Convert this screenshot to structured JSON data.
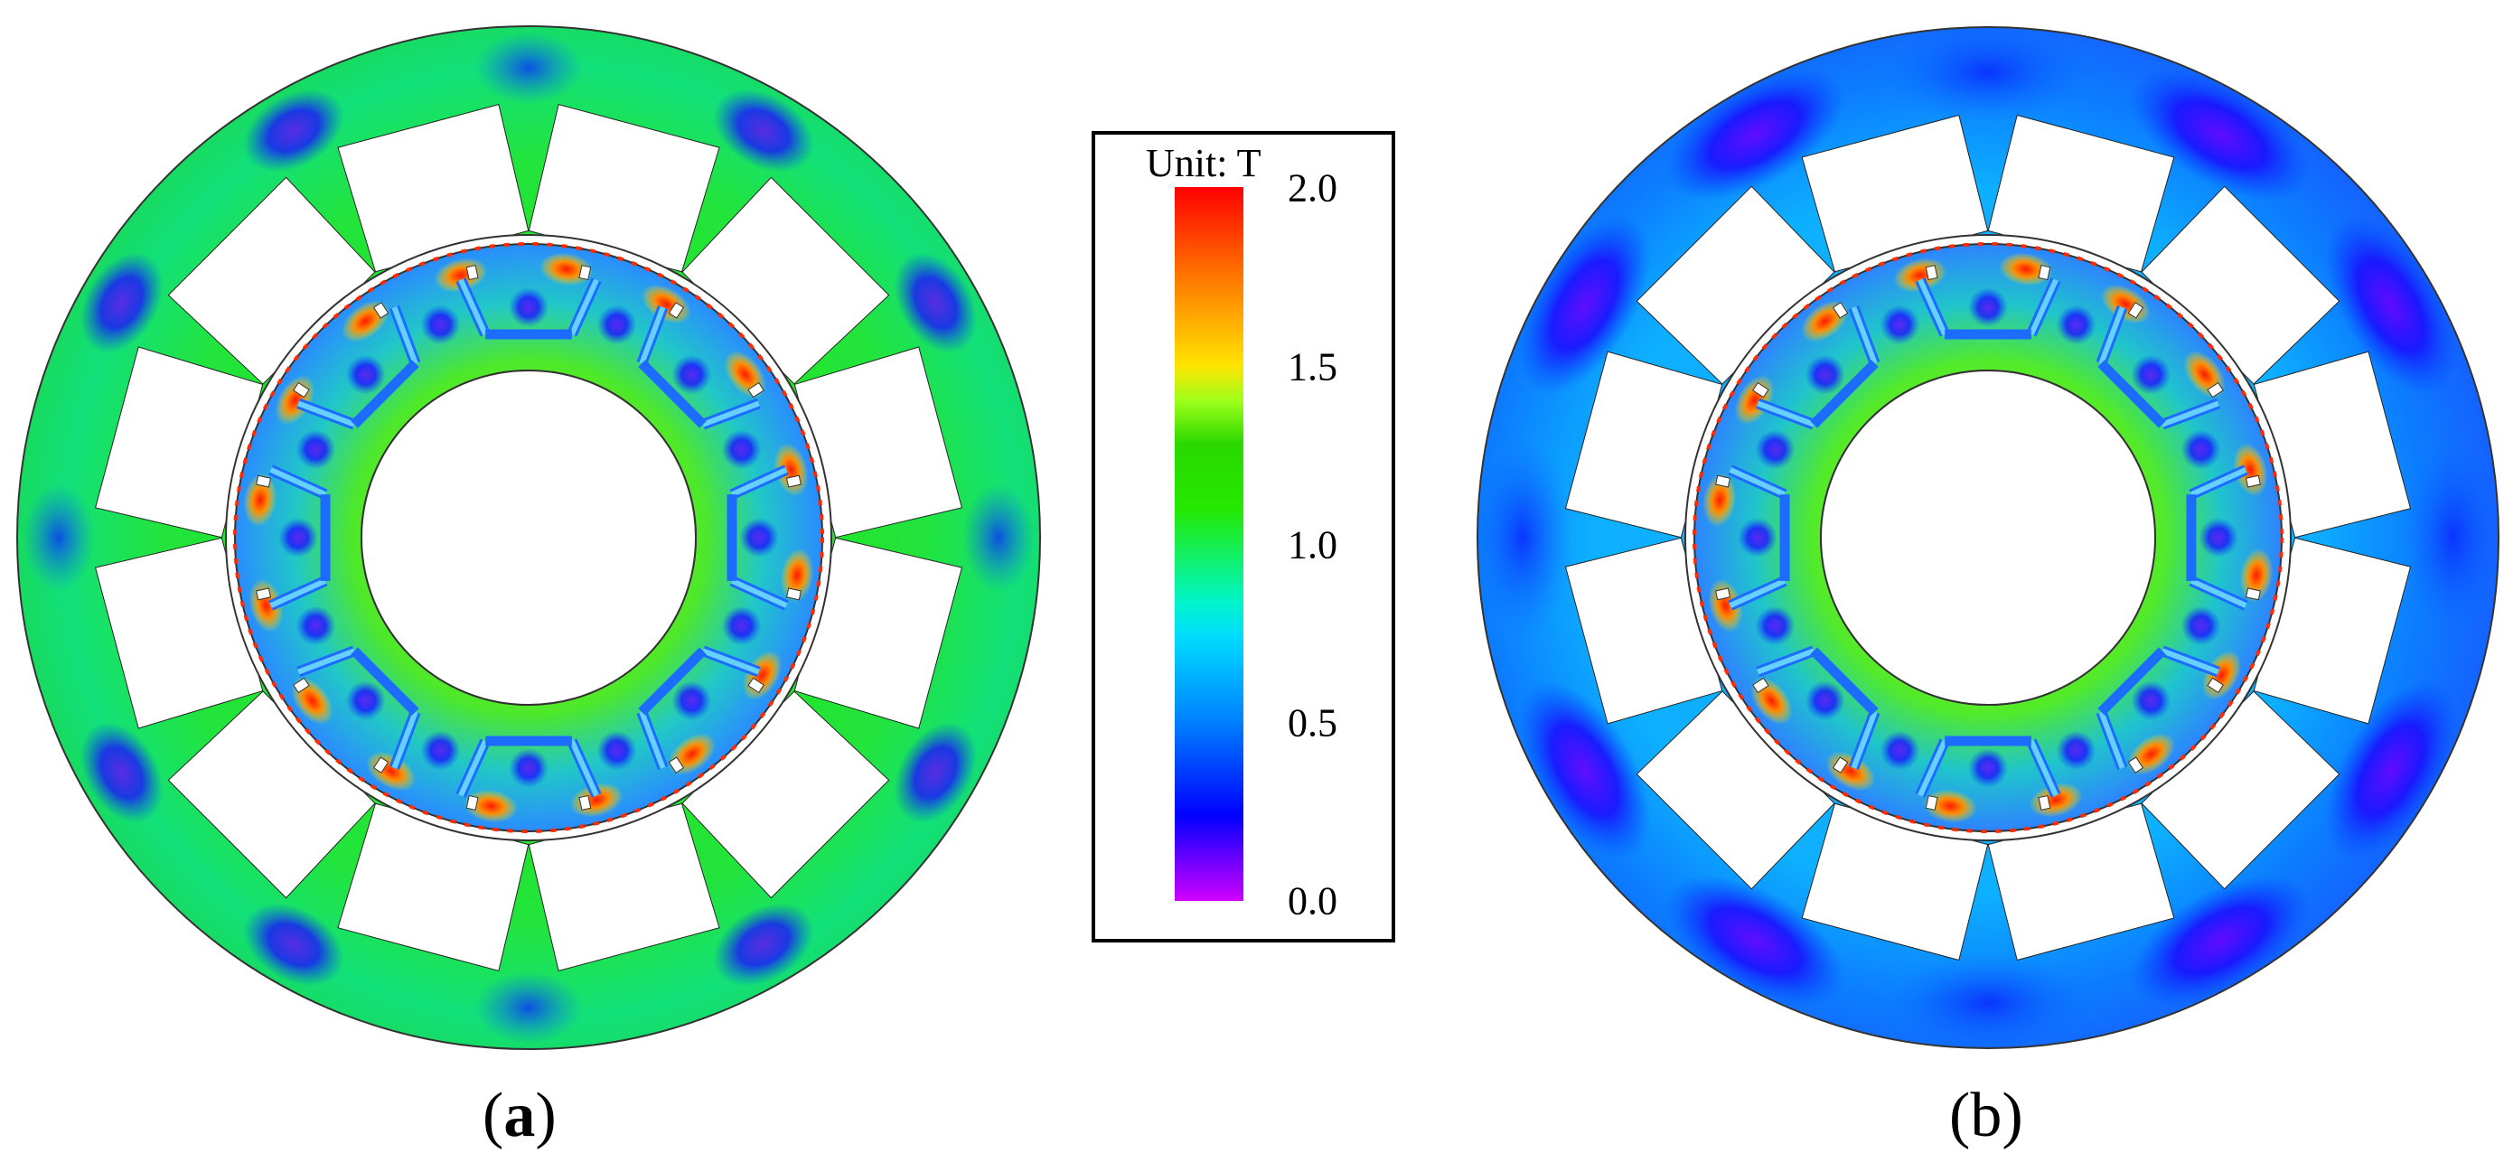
{
  "figure": {
    "panels": [
      {
        "label_open": "(",
        "label_letter": "a",
        "label_close": ")"
      },
      {
        "label_open": "(",
        "label_letter": "b",
        "label_close": ")"
      }
    ],
    "legend": {
      "unit_label": "Unit: T",
      "ticks": [
        "2.0",
        "1.5",
        "1.0",
        "0.5",
        "0.0"
      ],
      "colors": {
        "max": "#ff0000",
        "high": "#ffe400",
        "mid": "#25e900",
        "low_mid": "#00dcff",
        "low": "#0000ff",
        "min": "#d000ff"
      }
    }
  }
}
